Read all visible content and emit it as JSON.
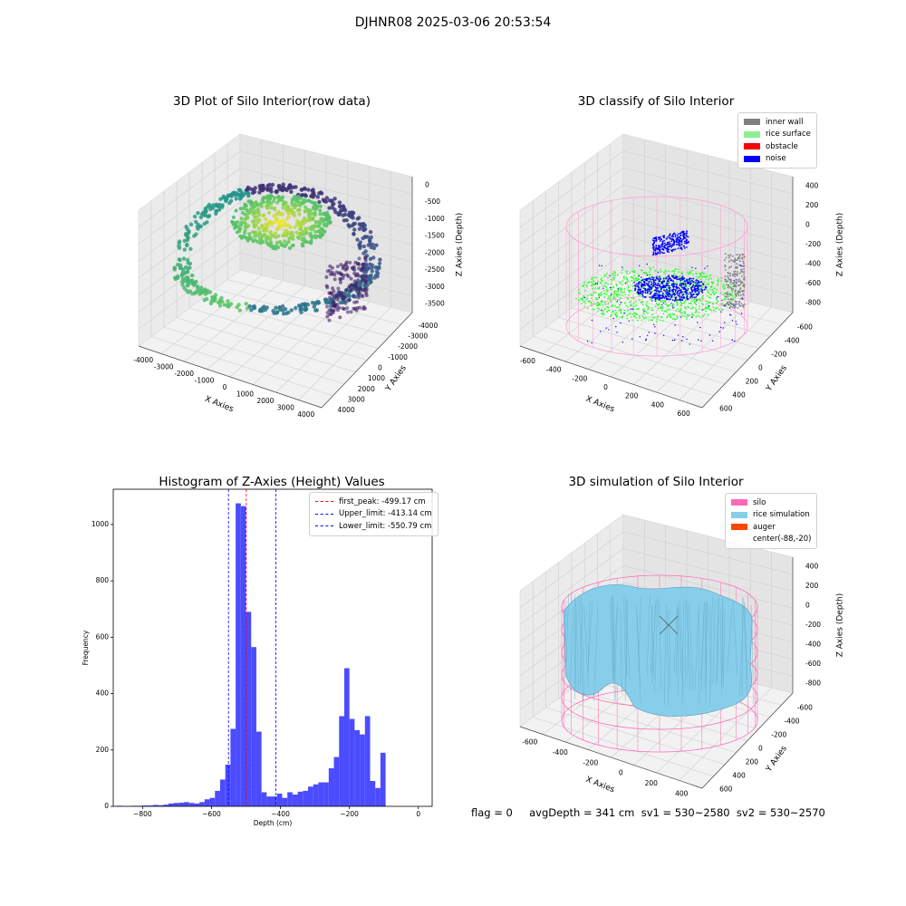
{
  "suptitle": "DJHNR08 2025-03-06 20:53:54",
  "footer": "flag = 0     avgDepth = 341 cm  sv1 = 530~2580  sv2 = 530~2570",
  "chart_data": [
    {
      "type": "scatter",
      "title": "3D Plot of Silo Interior(row data)",
      "xlabel": "X Axies",
      "ylabel": "Y Axies",
      "zlabel": "Z Axies (Depth)",
      "x_ticks": [
        "-4000",
        "-3000",
        "-2000",
        "-1000",
        "0",
        "1000",
        "2000",
        "3000",
        "4000"
      ],
      "y_ticks": [
        "-4000",
        "-3000",
        "-2000",
        "-1000",
        "0",
        "1000",
        "2000",
        "3000",
        "4000"
      ],
      "z_ticks": [
        "0",
        "-500",
        "-1000",
        "-1500",
        "-2000",
        "-2500",
        "-3000",
        "-3500"
      ],
      "colormap": "viridis"
    },
    {
      "type": "scatter",
      "title": "3D classify of Silo Interior",
      "xlabel": "X Axies",
      "ylabel": "Y Axies",
      "zlabel": "Z Axies (Depth)",
      "x_ticks": [
        "-600",
        "-400",
        "-200",
        "0",
        "200",
        "400",
        "600"
      ],
      "y_ticks": [
        "-600",
        "-400",
        "-200",
        "0",
        "200",
        "400",
        "600"
      ],
      "z_ticks": [
        "400",
        "200",
        "0",
        "-200",
        "-400",
        "-600",
        "-800"
      ],
      "legend": [
        {
          "label": "inner wall",
          "color": "#808080"
        },
        {
          "label": "rice surface",
          "color": "#90ee90"
        },
        {
          "label": "obstacle",
          "color": "#ff0000"
        },
        {
          "label": "noise",
          "color": "#0000ff"
        }
      ]
    },
    {
      "type": "bar",
      "title": "Histogram of Z-Axies (Height) Values",
      "xlabel": "Depth (cm)",
      "ylabel": "Frequency",
      "xlim": [
        -885,
        40
      ],
      "ylim": [
        0,
        1125
      ],
      "x_ticks": [
        -800,
        -600,
        -400,
        -200,
        0
      ],
      "y_ticks": [
        0,
        200,
        400,
        600,
        800,
        1000
      ],
      "bar_color": "#4b4bff",
      "bins": [
        {
          "x0": -875,
          "x1": -860,
          "v": 2
        },
        {
          "x0": -860,
          "x1": -845,
          "v": 1
        },
        {
          "x0": -845,
          "x1": -830,
          "v": 1
        },
        {
          "x0": -830,
          "x1": -815,
          "v": 2
        },
        {
          "x0": -815,
          "x1": -800,
          "v": 2
        },
        {
          "x0": -800,
          "x1": -785,
          "v": 3
        },
        {
          "x0": -785,
          "x1": -770,
          "v": 3
        },
        {
          "x0": -770,
          "x1": -755,
          "v": 5
        },
        {
          "x0": -755,
          "x1": -740,
          "v": 4
        },
        {
          "x0": -740,
          "x1": -725,
          "v": 6
        },
        {
          "x0": -725,
          "x1": -710,
          "v": 10
        },
        {
          "x0": -710,
          "x1": -695,
          "v": 12
        },
        {
          "x0": -695,
          "x1": -680,
          "v": 13
        },
        {
          "x0": -680,
          "x1": -665,
          "v": 15
        },
        {
          "x0": -665,
          "x1": -650,
          "v": 12
        },
        {
          "x0": -650,
          "x1": -635,
          "v": 10
        },
        {
          "x0": -635,
          "x1": -620,
          "v": 15
        },
        {
          "x0": -620,
          "x1": -605,
          "v": 25
        },
        {
          "x0": -605,
          "x1": -590,
          "v": 30
        },
        {
          "x0": -590,
          "x1": -575,
          "v": 55
        },
        {
          "x0": -575,
          "x1": -560,
          "v": 95
        },
        {
          "x0": -560,
          "x1": -545,
          "v": 148
        },
        {
          "x0": -545,
          "x1": -530,
          "v": 275
        },
        {
          "x0": -530,
          "x1": -515,
          "v": 1075
        },
        {
          "x0": -515,
          "x1": -500,
          "v": 1065
        },
        {
          "x0": -500,
          "x1": -485,
          "v": 690
        },
        {
          "x0": -485,
          "x1": -470,
          "v": 565
        },
        {
          "x0": -470,
          "x1": -455,
          "v": 265
        },
        {
          "x0": -455,
          "x1": -440,
          "v": 50
        },
        {
          "x0": -440,
          "x1": -425,
          "v": 35
        },
        {
          "x0": -425,
          "x1": -410,
          "v": 35
        },
        {
          "x0": -410,
          "x1": -395,
          "v": 45
        },
        {
          "x0": -395,
          "x1": -380,
          "v": 30
        },
        {
          "x0": -380,
          "x1": -365,
          "v": 50
        },
        {
          "x0": -365,
          "x1": -350,
          "v": 42
        },
        {
          "x0": -350,
          "x1": -335,
          "v": 52
        },
        {
          "x0": -335,
          "x1": -320,
          "v": 55
        },
        {
          "x0": -320,
          "x1": -305,
          "v": 70
        },
        {
          "x0": -305,
          "x1": -290,
          "v": 78
        },
        {
          "x0": -290,
          "x1": -275,
          "v": 85
        },
        {
          "x0": -275,
          "x1": -260,
          "v": 85
        },
        {
          "x0": -260,
          "x1": -245,
          "v": 135
        },
        {
          "x0": -245,
          "x1": -230,
          "v": 175
        },
        {
          "x0": -230,
          "x1": -215,
          "v": 320
        },
        {
          "x0": -215,
          "x1": -200,
          "v": 490
        },
        {
          "x0": -200,
          "x1": -185,
          "v": 310
        },
        {
          "x0": -185,
          "x1": -170,
          "v": 270
        },
        {
          "x0": -170,
          "x1": -155,
          "v": 255
        },
        {
          "x0": -155,
          "x1": -140,
          "v": 320
        },
        {
          "x0": -140,
          "x1": -125,
          "v": 90
        },
        {
          "x0": -125,
          "x1": -110,
          "v": 65
        },
        {
          "x0": -110,
          "x1": -95,
          "v": 190
        }
      ],
      "vlines": [
        {
          "x": -499.17,
          "label": "first_peak: -499.17 cm",
          "color": "#ff0000"
        },
        {
          "x": -413.14,
          "label": "Upper_limit: -413.14 cm",
          "color": "#0000ff"
        },
        {
          "x": -550.79,
          "label": "Lower_limit: -550.79 cm",
          "color": "#0000ff"
        }
      ]
    },
    {
      "type": "surface",
      "title": "3D simulation of Silo Interior",
      "xlabel": "X Axies",
      "ylabel": "Y Axies",
      "zlabel": "Z Axies (Depth)",
      "x_ticks": [
        "-600",
        "-400",
        "-200",
        "0",
        "200",
        "400"
      ],
      "y_ticks": [
        "-600",
        "-400",
        "-200",
        "0",
        "200",
        "400",
        "600"
      ],
      "z_ticks": [
        "400",
        "200",
        "0",
        "-200",
        "-400",
        "-600",
        "-800"
      ],
      "legend": [
        {
          "label": "silo",
          "color": "#ff69b4"
        },
        {
          "label": "rice simulation",
          "color": "#87ceeb"
        },
        {
          "label": "auger",
          "color": "#ff4500"
        },
        {
          "label": "center(-88,-20)",
          "color": ""
        }
      ]
    }
  ]
}
